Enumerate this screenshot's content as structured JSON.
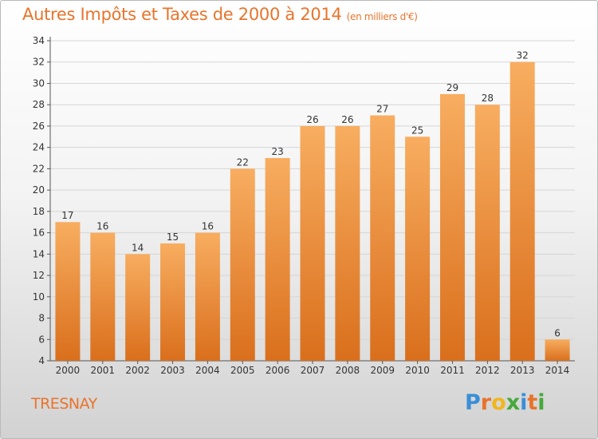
{
  "header": {
    "title": "Autres Impôts et Taxes de 2000 à 2014",
    "subtitle": "(en milliers d'€)"
  },
  "footer": {
    "place": "TRESNAY",
    "logo_letters": [
      {
        "char": "P",
        "color": "#3a8fd6"
      },
      {
        "char": "r",
        "color": "#e8742c"
      },
      {
        "char": "o",
        "color": "#f0b61e"
      },
      {
        "char": "x",
        "color": "#46a83c"
      },
      {
        "char": "i",
        "color": "#3a8fd6"
      },
      {
        "char": "t",
        "color": "#e8742c"
      },
      {
        "char": "i",
        "color": "#46a83c"
      }
    ]
  },
  "colors": {
    "accent": "#e8742c",
    "bar_top": "#f8ad60",
    "bar_bottom": "#d96f1c"
  },
  "chart_data": {
    "type": "bar",
    "title": "Autres Impôts et Taxes de 2000 à 2014",
    "subtitle": "(en milliers d'€)",
    "categories": [
      "2000",
      "2001",
      "2002",
      "2003",
      "2004",
      "2005",
      "2006",
      "2007",
      "2008",
      "2009",
      "2010",
      "2011",
      "2012",
      "2013",
      "2014"
    ],
    "values": [
      17,
      16,
      14,
      15,
      16,
      22,
      23,
      26,
      26,
      27,
      25,
      29,
      28,
      32,
      6
    ],
    "ylim": [
      4,
      34
    ],
    "yticks": [
      4,
      6,
      8,
      10,
      12,
      14,
      16,
      18,
      20,
      22,
      24,
      26,
      28,
      30,
      32,
      34
    ],
    "grid": true,
    "data_labels": true,
    "xlabel": "",
    "ylabel": ""
  }
}
